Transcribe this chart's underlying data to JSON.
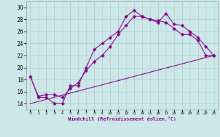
{
  "xlabel": "Windchill (Refroidissement éolien,°C)",
  "bg_color": "#cce8e8",
  "grid_color": "#aacccc",
  "line_color": "#880088",
  "xlim": [
    -0.5,
    23.5
  ],
  "ylim": [
    13,
    31
  ],
  "yticks": [
    14,
    16,
    18,
    20,
    22,
    24,
    26,
    28,
    30
  ],
  "xticks": [
    0,
    1,
    2,
    3,
    4,
    5,
    6,
    7,
    8,
    9,
    10,
    11,
    12,
    13,
    14,
    15,
    16,
    17,
    18,
    19,
    20,
    21,
    22,
    23
  ],
  "curve1_x": [
    0,
    1,
    2,
    3,
    4,
    5,
    6,
    7,
    8,
    9,
    10,
    11,
    12,
    13,
    14,
    15,
    16,
    17,
    18,
    19,
    20,
    21,
    22,
    23
  ],
  "curve1_y": [
    18.5,
    15.0,
    15.0,
    14.0,
    14.0,
    17.0,
    17.0,
    20.0,
    23.0,
    24.0,
    25.0,
    26.0,
    28.5,
    29.5,
    28.5,
    28.0,
    27.5,
    29.0,
    27.2,
    27.0,
    26.0,
    25.0,
    23.5,
    22.0
  ],
  "curve2_x": [
    0,
    1,
    2,
    3,
    4,
    5,
    6,
    7,
    8,
    9,
    10,
    11,
    12,
    13,
    14,
    15,
    16,
    17,
    18,
    19,
    20,
    21,
    22,
    23
  ],
  "curve2_y": [
    18.5,
    15.2,
    15.5,
    15.5,
    15.0,
    16.5,
    17.5,
    19.5,
    21.0,
    22.0,
    23.5,
    25.5,
    27.0,
    28.5,
    28.5,
    28.0,
    27.8,
    27.5,
    26.5,
    25.5,
    25.5,
    24.5,
    22.0,
    22.0
  ],
  "curve3_x": [
    0,
    23
  ],
  "curve3_y": [
    14.0,
    22.0
  ]
}
